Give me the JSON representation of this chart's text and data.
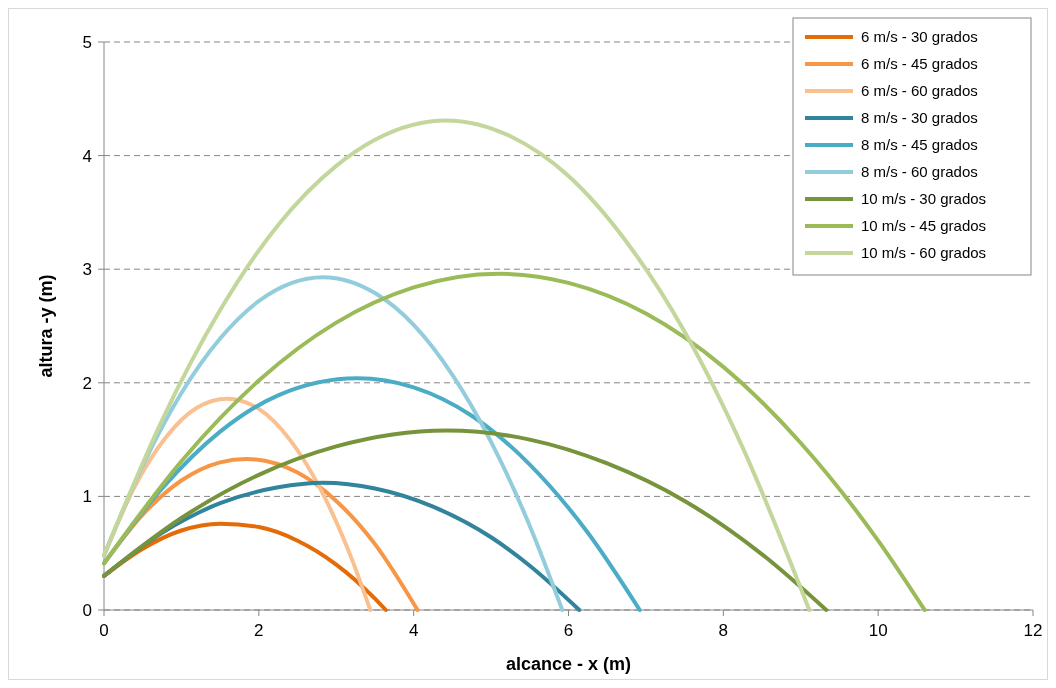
{
  "chart_data": {
    "type": "line",
    "xlabel": "alcance  - x (m)",
    "ylabel": "altura -y (m)",
    "xlim": [
      0,
      12
    ],
    "xticks": [
      0,
      2,
      4,
      6,
      8,
      10,
      12
    ],
    "ylim": [
      0,
      5
    ],
    "yticks": [
      0,
      1,
      2,
      3,
      4,
      5
    ],
    "grid": "y",
    "legend": "top right",
    "marker": "none",
    "line_style": "solid",
    "series": [
      {
        "name": "6 m/s - 30 grados",
        "color": "#e36c09",
        "x": [
          0,
          0.5,
          1,
          1.5,
          2,
          2.5,
          3,
          3.5,
          3.64
        ],
        "values": [
          0.3,
          0.54,
          0.7,
          0.76,
          0.73,
          0.61,
          0.4,
          0.1,
          0
        ]
      },
      {
        "name": "6 m/s - 45 grados",
        "color": "#f79646",
        "x": [
          0,
          0.5,
          1,
          1.5,
          1.84,
          2.5,
          3,
          3.5,
          4.05
        ],
        "values": [
          0.41,
          0.84,
          1.14,
          1.3,
          1.33,
          1.21,
          0.96,
          0.58,
          0
        ]
      },
      {
        "name": "6 m/s - 60 grados",
        "color": "#fac090",
        "x": [
          0,
          0.4,
          0.8,
          1.2,
          1.59,
          2,
          2.4,
          2.8,
          3.2,
          3.44
        ],
        "values": [
          0.48,
          1.09,
          1.52,
          1.78,
          1.86,
          1.77,
          1.5,
          1.06,
          0.45,
          0
        ]
      },
      {
        "name": "8 m/s - 30 grados",
        "color": "#31849b",
        "x": [
          0,
          0.75,
          1.5,
          2.25,
          2.83,
          3.5,
          4.25,
          5,
          5.5,
          6.14
        ],
        "values": [
          0.3,
          0.68,
          0.94,
          1.08,
          1.12,
          1.07,
          0.91,
          0.64,
          0.39,
          0
        ]
      },
      {
        "name": "8 m/s - 45 grados",
        "color": "#4bacc6",
        "x": [
          0,
          0.75,
          1.5,
          2.25,
          3.27,
          4,
          4.75,
          5.5,
          6.25,
          6.92
        ],
        "values": [
          0.41,
          1.07,
          1.57,
          1.89,
          2.04,
          1.96,
          1.71,
          1.28,
          0.68,
          0
        ]
      },
      {
        "name": "8 m/s - 60 grados",
        "color": "#93cddd",
        "x": [
          0,
          0.5,
          1,
          1.5,
          2,
          2.83,
          3.5,
          4,
          4.5,
          5,
          5.5,
          5.92
        ],
        "values": [
          0.48,
          1.27,
          1.91,
          2.39,
          2.72,
          2.93,
          2.79,
          2.51,
          2.07,
          1.48,
          0.74,
          0
        ]
      },
      {
        "name": "10 m/s - 30 grados",
        "color": "#77933c",
        "x": [
          0,
          1,
          2,
          3,
          4.42,
          5.5,
          6.5,
          7.5,
          8.5,
          9.33
        ],
        "values": [
          0.3,
          0.81,
          1.19,
          1.44,
          1.58,
          1.5,
          1.29,
          0.96,
          0.49,
          0
        ]
      },
      {
        "name": "10 m/s - 45 grados",
        "color": "#9bbb59",
        "x": [
          0,
          1,
          2,
          3,
          4,
          5.1,
          6,
          7,
          8,
          9,
          10,
          10.6
        ],
        "values": [
          0.41,
          1.31,
          2.02,
          2.53,
          2.84,
          2.96,
          2.88,
          2.61,
          2.14,
          1.47,
          0.61,
          0
        ]
      },
      {
        "name": "10 m/s - 60 grados",
        "color": "#c3d69b",
        "x": [
          0,
          0.75,
          1.5,
          2.25,
          3,
          3.5,
          4.42,
          5.25,
          6,
          6.75,
          7.5,
          8.25,
          9.11
        ],
        "values": [
          0.48,
          1.67,
          2.64,
          3.39,
          3.91,
          4.14,
          4.31,
          4.17,
          3.82,
          3.24,
          2.45,
          1.43,
          0
        ]
      }
    ]
  }
}
